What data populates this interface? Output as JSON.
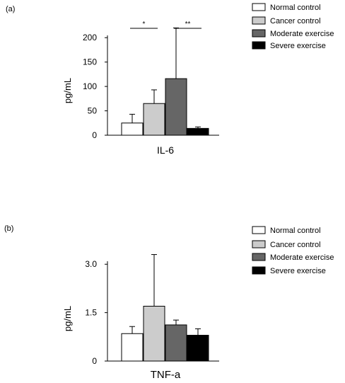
{
  "chart_data": [
    {
      "panel_label": "(a)",
      "type": "bar",
      "categories": [
        "Normal control",
        "Cancer control",
        "Moderate exercise",
        "Severe exercise"
      ],
      "values": [
        25,
        65,
        116,
        14
      ],
      "errors": [
        18,
        28,
        104,
        3
      ],
      "colors": [
        "#ffffff",
        "#cccccc",
        "#666666",
        "#000000"
      ],
      "xlabel": "IL-6",
      "ylabel": "pg/mL",
      "ylim": [
        0,
        225
      ],
      "yticks": [
        0,
        50,
        100,
        150,
        200
      ],
      "ytick_labels": [
        "0",
        "50",
        "100",
        "150",
        "200"
      ],
      "legend": [
        "Normal control",
        "Cancer control",
        "Moderate exercise",
        "Severe exercise"
      ],
      "legend_position": "top-right",
      "grid": false,
      "significance": [
        {
          "from": 0,
          "to": 1,
          "label": "*"
        },
        {
          "from": 2,
          "to": 3,
          "label": "**"
        }
      ]
    },
    {
      "panel_label": "(b)",
      "type": "bar",
      "categories": [
        "Normal control",
        "Cancer control",
        "Moderate exercise",
        "Severe exercise"
      ],
      "values": [
        0.85,
        1.7,
        1.12,
        0.8
      ],
      "errors": [
        0.22,
        1.6,
        0.15,
        0.2
      ],
      "colors": [
        "#ffffff",
        "#cccccc",
        "#666666",
        "#000000"
      ],
      "xlabel": "TNF-a",
      "ylabel": "pg/mL",
      "ylim": [
        0,
        3.4
      ],
      "yticks": [
        0,
        1.5,
        3.0
      ],
      "ytick_labels": [
        "0",
        "1.5",
        "3.0"
      ],
      "legend": [
        "Normal control",
        "Cancer control",
        "Moderate exercise",
        "Severe exercise"
      ],
      "legend_position": "top-right",
      "grid": false
    }
  ]
}
